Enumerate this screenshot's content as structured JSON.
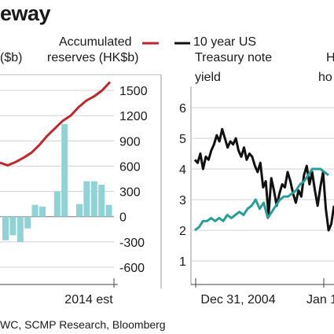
{
  "header": {
    "title": "eway"
  },
  "legend": {
    "left_unit": "($b)",
    "reserves_line1": "Accumulated",
    "reserves_line2": "reserves (HK$b)",
    "treasury_line1": "10 year US",
    "treasury_line2": "Treasury note",
    "treasury_line3": "yield",
    "right_cut_line1": "H",
    "right_cut_line2": "ho"
  },
  "source": "WC, SCMP Research, Bloomberg",
  "colors": {
    "reserves_line": "#c0272d",
    "bars": "#8fd3d6",
    "treasury_line": "#111111",
    "housing_line": "#2a9d96"
  },
  "chart_data": [
    {
      "type": "bar",
      "title": "",
      "x_tick_label": "2014 est",
      "y_ticks": [
        1500,
        1200,
        900,
        600,
        300,
        0,
        -300,
        -600
      ],
      "ylim": [
        -700,
        1700
      ],
      "bars": [
        -280,
        -220,
        -300,
        -140,
        140,
        120,
        0,
        300,
        1100,
        0,
        150,
        420,
        420,
        380,
        140
      ],
      "series": [
        {
          "name": "Accumulated reserves (HK$b)",
          "type": "line",
          "values": [
            640,
            610,
            650,
            700,
            760,
            850,
            960,
            1050,
            1140,
            1200,
            1300,
            1380,
            1430,
            1500,
            1600
          ]
        }
      ]
    },
    {
      "type": "line",
      "title": "",
      "x_tick_labels": [
        "Dec 31, 2004",
        "Jan 1"
      ],
      "y_ticks": [
        6,
        5,
        4,
        3,
        2,
        1
      ],
      "ylim": [
        0.3,
        6.5
      ],
      "series": [
        {
          "name": "10 year US Treasury note yield",
          "values": [
            4.3,
            4.2,
            4.5,
            4.0,
            4.4,
            4.3,
            4.6,
            4.8,
            5.1,
            4.9,
            5.3,
            5.0,
            4.7,
            4.9,
            4.8,
            5.0,
            4.6,
            4.4,
            4.7,
            4.3,
            4.5,
            4.4,
            4.1,
            3.9,
            4.2,
            3.4,
            3.6,
            2.5,
            3.7,
            3.3,
            2.8,
            3.2,
            3.5,
            3.4,
            3.9,
            3.6,
            3.2,
            2.9,
            3.3,
            3.1,
            3.8,
            4.1,
            3.5,
            3.9,
            3.3,
            2.8,
            3.4,
            3.9,
            2.7,
            2.0,
            2.2,
            2.8
          ]
        },
        {
          "name": "",
          "values": [
            2.0,
            2.1,
            2.3,
            2.3,
            2.4,
            2.3,
            2.4,
            2.3,
            2.5,
            2.4,
            2.5,
            2.6,
            2.5,
            2.7,
            2.8,
            3.0,
            2.7,
            2.9,
            2.4,
            2.6,
            2.8,
            3.0,
            3.1,
            3.1,
            3.2,
            3.3,
            3.5,
            3.6,
            3.8,
            4.0,
            4.0,
            4.0,
            3.9,
            3.8
          ]
        }
      ]
    }
  ]
}
